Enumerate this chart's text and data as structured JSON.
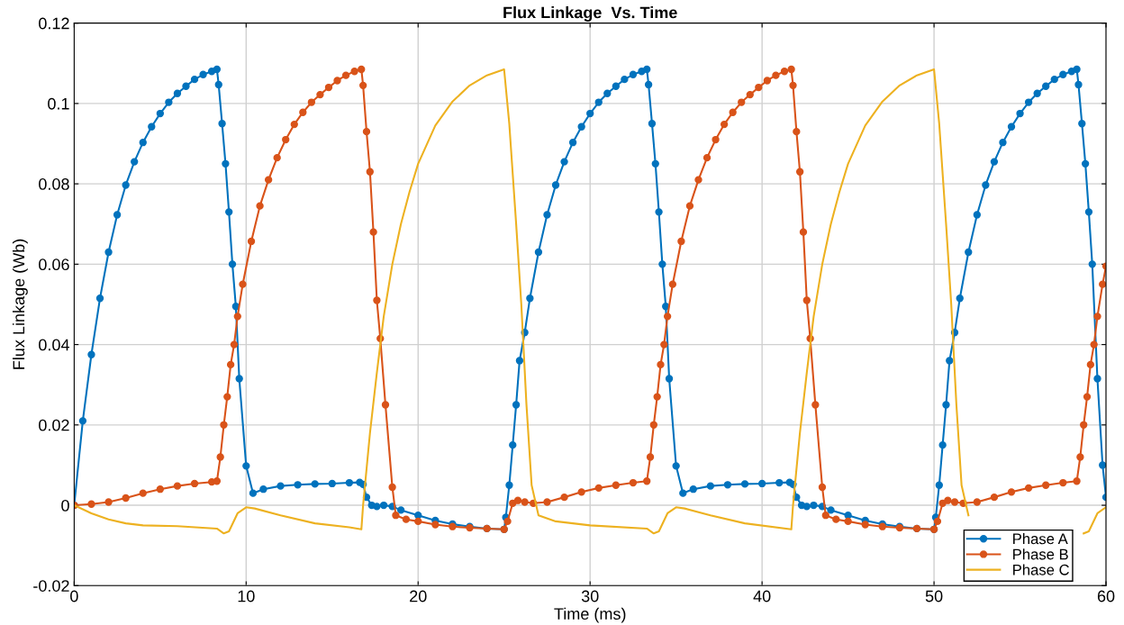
{
  "chart_data": {
    "type": "line",
    "title": "Flux Linkage  Vs. Time",
    "xlabel": "Time (ms)",
    "ylabel": "Flux Linkage (Wb)",
    "xlim": [
      0,
      60
    ],
    "xticks": [
      0,
      10,
      20,
      30,
      40,
      50,
      60
    ],
    "ylim": [
      -0.02,
      0.12
    ],
    "yticks": [
      -0.02,
      0,
      0.02,
      0.04,
      0.06,
      0.08,
      0.1,
      0.12
    ],
    "grid": true,
    "legend": "bottom right",
    "line_style": "solid",
    "series": [
      {
        "name": "Phase A",
        "color": "#0072bd",
        "marker": "circle",
        "x": [
          0,
          0.5,
          1,
          1.5,
          2,
          2.5,
          3,
          3.5,
          4,
          4.5,
          5,
          5.5,
          6,
          6.5,
          7,
          7.5,
          8,
          8.3,
          8.4,
          8.6,
          8.8,
          9,
          9.2,
          9.4,
          9.6,
          10,
          10.4,
          11,
          12,
          13,
          14,
          15,
          16,
          16.6,
          16.8,
          17,
          17.3,
          17.6,
          18,
          18.5,
          19,
          20,
          21,
          22,
          23,
          24,
          25,
          25.1,
          25.3,
          25.5,
          25.7,
          25.9,
          26.2,
          26.5,
          27,
          27.5,
          28,
          28.5,
          29,
          29.5,
          30,
          30.5,
          31,
          31.5,
          32,
          32.5,
          33,
          33.3,
          33.4,
          33.6,
          33.8,
          34,
          34.2,
          34.4,
          34.6,
          35,
          35.4,
          36,
          37,
          38,
          39,
          40,
          41,
          41.6,
          41.8,
          42,
          42.3,
          42.6,
          43,
          43.5,
          44,
          45,
          46,
          47,
          48,
          49,
          50,
          50.1,
          50.3,
          50.5,
          50.7,
          50.9,
          51.2,
          51.5,
          52,
          52.5,
          53,
          53.5,
          54,
          54.5,
          55,
          55.5,
          56,
          56.5,
          57,
          57.5,
          58,
          58.3,
          58.4,
          58.6,
          58.8,
          59,
          59.2,
          59.5,
          59.8,
          60
        ],
        "values": [
          0,
          0.021,
          0.0375,
          0.0515,
          0.063,
          0.0723,
          0.0797,
          0.0855,
          0.0903,
          0.0942,
          0.0975,
          0.1003,
          0.1025,
          0.1043,
          0.106,
          0.1072,
          0.108,
          0.1085,
          0.1047,
          0.095,
          0.085,
          0.073,
          0.06,
          0.0495,
          0.0315,
          0.0098,
          0.003,
          0.004,
          0.0048,
          0.0051,
          0.0053,
          0.0054,
          0.0056,
          0.0057,
          0.0052,
          0.002,
          0,
          -0.0003,
          0,
          -0.0003,
          -0.0012,
          -0.0025,
          -0.0038,
          -0.0047,
          -0.0053,
          -0.0058,
          -0.006,
          -0.003,
          0.005,
          0.015,
          0.025,
          0.036,
          0.043,
          0.0515,
          0.063,
          0.0723,
          0.0797,
          0.0855,
          0.0903,
          0.0942,
          0.0975,
          0.1003,
          0.1025,
          0.1043,
          0.106,
          0.1072,
          0.108,
          0.1085,
          0.1047,
          0.095,
          0.085,
          0.073,
          0.06,
          0.0495,
          0.0315,
          0.0098,
          0.003,
          0.004,
          0.0048,
          0.0051,
          0.0053,
          0.0054,
          0.0056,
          0.0057,
          0.0052,
          0.002,
          0,
          -0.0003,
          0,
          -0.0003,
          -0.0012,
          -0.0025,
          -0.0038,
          -0.0047,
          -0.0053,
          -0.0058,
          -0.006,
          -0.003,
          0.005,
          0.015,
          0.025,
          0.036,
          0.043,
          0.0515,
          0.063,
          0.0723,
          0.0797,
          0.0855,
          0.0903,
          0.0942,
          0.0975,
          0.1003,
          0.1025,
          0.1043,
          0.106,
          0.1072,
          0.108,
          0.1085,
          0.1047,
          0.095,
          0.085,
          0.073,
          0.06,
          0.0315,
          0.01,
          0.002
        ]
      },
      {
        "name": "Phase B",
        "color": "#d95319",
        "marker": "circle",
        "x": [
          0,
          1,
          2,
          3,
          4,
          5,
          6,
          7,
          8,
          8.3,
          8.5,
          8.7,
          8.9,
          9.1,
          9.3,
          9.5,
          9.8,
          10.3,
          10.8,
          11.3,
          11.8,
          12.3,
          12.8,
          13.3,
          13.8,
          14.3,
          14.8,
          15.3,
          15.8,
          16.3,
          16.7,
          16.8,
          17,
          17.2,
          17.4,
          17.6,
          17.8,
          18.1,
          18.5,
          18.7,
          19.3,
          20,
          21,
          22,
          23,
          24,
          25,
          25.2,
          25.5,
          25.8,
          26.2,
          26.7,
          27.5,
          28.5,
          29.5,
          30.5,
          31.5,
          32.5,
          33.3,
          33.5,
          33.7,
          33.9,
          34.1,
          34.3,
          34.5,
          34.8,
          35.3,
          35.8,
          36.3,
          36.8,
          37.3,
          37.8,
          38.3,
          38.8,
          39.3,
          39.8,
          40.3,
          40.8,
          41.3,
          41.7,
          41.8,
          42,
          42.2,
          42.4,
          42.6,
          42.8,
          43.1,
          43.5,
          43.7,
          44.3,
          45,
          46,
          47,
          48,
          49,
          50,
          50.2,
          50.5,
          50.8,
          51.2,
          51.7,
          52.5,
          53.5,
          54.5,
          55.5,
          56.5,
          57.5,
          58.3,
          58.5,
          58.7,
          58.9,
          59.1,
          59.3,
          59.5,
          59.8,
          60
        ],
        "values": [
          0,
          0.0003,
          0.0008,
          0.0018,
          0.003,
          0.004,
          0.0048,
          0.0054,
          0.0058,
          0.006,
          0.012,
          0.02,
          0.027,
          0.035,
          0.04,
          0.047,
          0.055,
          0.0657,
          0.0745,
          0.081,
          0.0865,
          0.091,
          0.0948,
          0.0978,
          0.1003,
          0.1022,
          0.104,
          0.1057,
          0.107,
          0.108,
          0.1085,
          0.1045,
          0.093,
          0.083,
          0.068,
          0.051,
          0.0415,
          0.025,
          0.0045,
          -0.0025,
          -0.0035,
          -0.004,
          -0.0048,
          -0.0053,
          -0.0056,
          -0.0058,
          -0.006,
          -0.004,
          0.0005,
          0.0012,
          0.0008,
          0.0005,
          0.0008,
          0.002,
          0.0033,
          0.0043,
          0.005,
          0.0056,
          0.006,
          0.012,
          0.02,
          0.027,
          0.035,
          0.04,
          0.047,
          0.055,
          0.0657,
          0.0745,
          0.081,
          0.0865,
          0.091,
          0.0948,
          0.0978,
          0.1003,
          0.1022,
          0.104,
          0.1057,
          0.107,
          0.108,
          0.1085,
          0.1045,
          0.093,
          0.083,
          0.068,
          0.051,
          0.0415,
          0.025,
          0.0045,
          -0.0025,
          -0.0035,
          -0.004,
          -0.0048,
          -0.0053,
          -0.0056,
          -0.0058,
          -0.006,
          -0.004,
          0.0005,
          0.0012,
          0.0008,
          0.0005,
          0.0008,
          0.002,
          0.0033,
          0.0043,
          0.005,
          0.0056,
          0.006,
          0.012,
          0.02,
          0.027,
          0.035,
          0.04,
          0.047,
          0.055,
          0.0595
        ]
      },
      {
        "name": "Phase C",
        "color": "#edb120",
        "marker": "none",
        "x": [
          0,
          1,
          2,
          3,
          4,
          6,
          8.3,
          8.7,
          9,
          9.5,
          10,
          10.5,
          12,
          14,
          16,
          16.7,
          16.8,
          17.2,
          17.6,
          18,
          18.5,
          19,
          19.5,
          20,
          21,
          22,
          23,
          24,
          25,
          25.3,
          25.7,
          26,
          26.3,
          26.6,
          27,
          28,
          30,
          33.3,
          33.7,
          34,
          34.5,
          35,
          35.5,
          37,
          39,
          41.7,
          41.8,
          42.2,
          42.6,
          43,
          43.5,
          44,
          44.5,
          45,
          46,
          47,
          48,
          49,
          50,
          50.3,
          50.7,
          51,
          51.3,
          51.6,
          52,
          53,
          55,
          58.3,
          58.7,
          59,
          59.5,
          60
        ],
        "values": [
          0,
          -0.002,
          -0.0035,
          -0.0045,
          -0.005,
          -0.0052,
          -0.0058,
          -0.007,
          -0.0065,
          -0.002,
          -0.0005,
          -0.0008,
          -0.0025,
          -0.0045,
          -0.0055,
          -0.006,
          0,
          0.018,
          0.033,
          0.047,
          0.06,
          0.07,
          0.078,
          0.085,
          0.0945,
          0.1005,
          0.1045,
          0.107,
          0.1085,
          0.095,
          0.07,
          0.05,
          0.025,
          0.005,
          -0.0025,
          -0.004,
          -0.005,
          -0.0058,
          -0.007,
          -0.0065,
          -0.002,
          -0.0005,
          -0.0008,
          -0.0025,
          -0.0045,
          -0.006,
          0,
          0.018,
          0.033,
          0.047,
          0.06,
          0.07,
          0.078,
          0.085,
          0.0945,
          0.1005,
          0.1045,
          0.107,
          0.1085,
          0.095,
          0.07,
          0.05,
          0.025,
          0.005,
          -0.0025,
          null,
          null,
          null,
          -0.007,
          -0.0065,
          -0.002,
          -0.0005
        ]
      }
    ]
  }
}
